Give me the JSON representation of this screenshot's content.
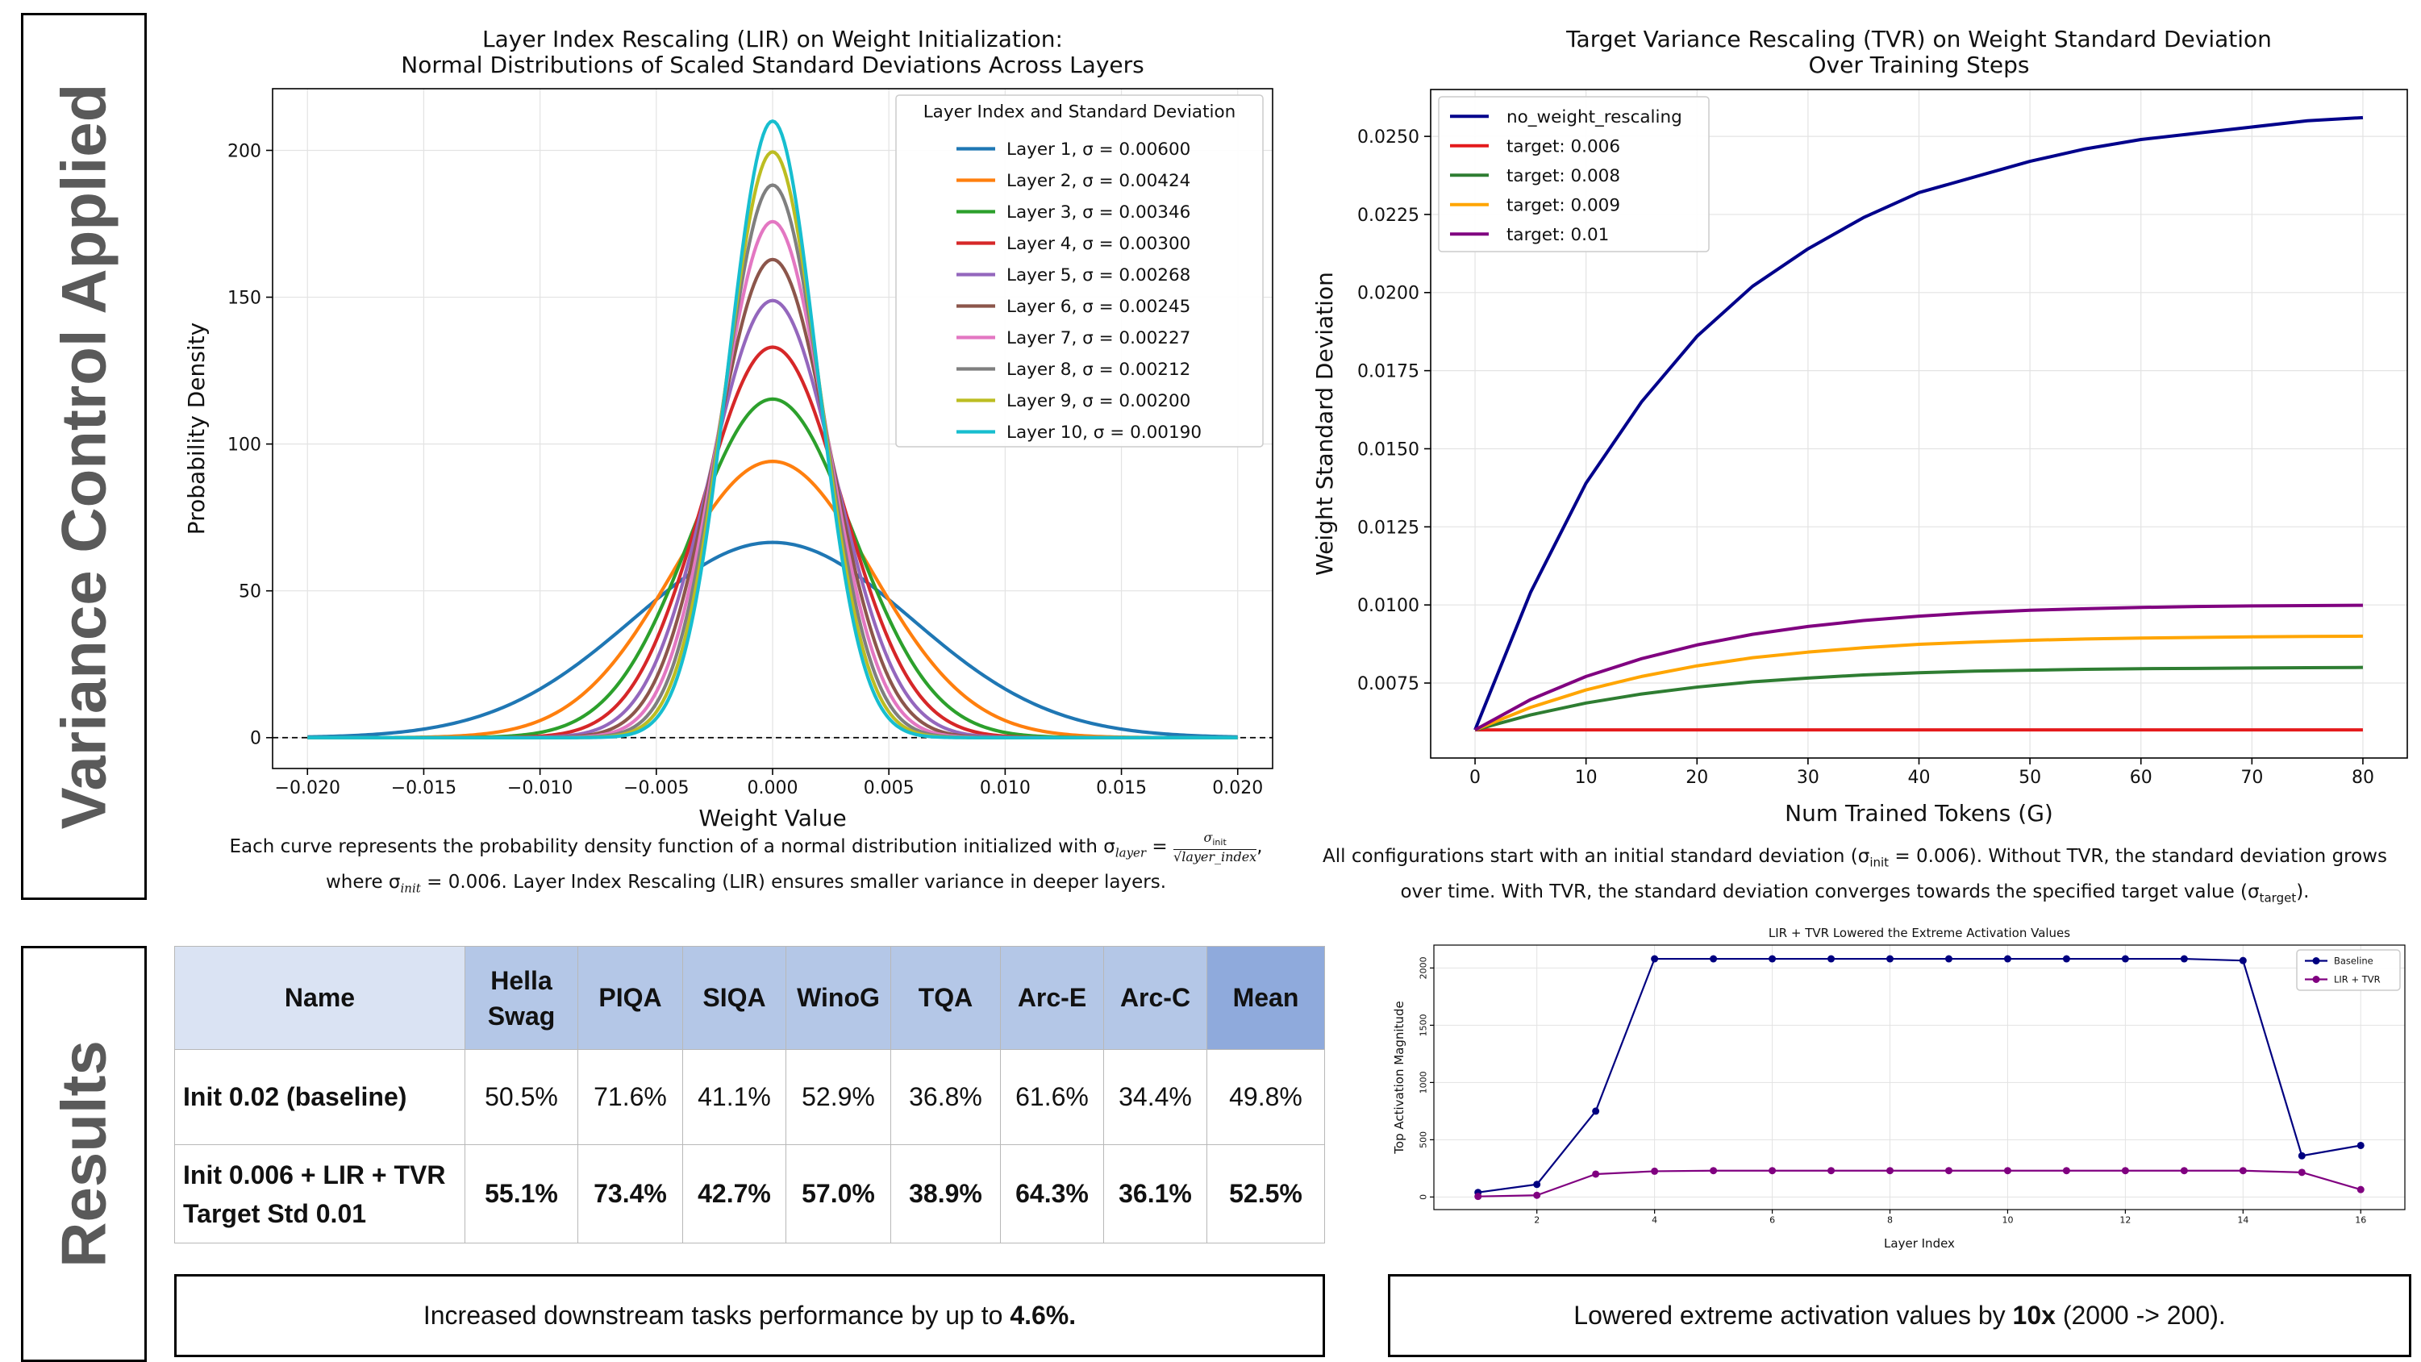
{
  "side_labels": {
    "top": "Variance Control Applied",
    "bottom": "Results"
  },
  "chart_data": [
    {
      "id": "lir",
      "type": "line",
      "title_lines": [
        "Layer Index Rescaling (LIR) on Weight Initialization:",
        "Normal Distributions of Scaled Standard Deviations Across Layers"
      ],
      "xlabel": "Weight Value",
      "ylabel": "Probability Density",
      "xlim": [
        -0.0215,
        0.0215
      ],
      "ylim": [
        -10.5,
        221
      ],
      "xticks": [
        -0.02,
        -0.015,
        -0.01,
        -0.005,
        0.0,
        0.005,
        0.01,
        0.015,
        0.02
      ],
      "xtick_labels": [
        "−0.020",
        "−0.015",
        "−0.010",
        "−0.005",
        "0.000",
        "0.005",
        "0.010",
        "0.015",
        "0.020"
      ],
      "yticks": [
        0,
        50,
        100,
        150,
        200
      ],
      "ytick_labels": [
        "0",
        "50",
        "100",
        "150",
        "200"
      ],
      "grid": true,
      "baseline_dashed_at": 0,
      "legend_title": "Layer Index and Standard Deviation",
      "legend_position": "upper right",
      "curve_range": [
        -0.02,
        0.02
      ],
      "series": [
        {
          "name": "Layer 1, σ = 0.00600",
          "sigma": 0.006,
          "color": "#1f77b4"
        },
        {
          "name": "Layer 2, σ = 0.00424",
          "sigma": 0.00424,
          "color": "#ff7f0e"
        },
        {
          "name": "Layer 3, σ = 0.00346",
          "sigma": 0.00346,
          "color": "#2ca02c"
        },
        {
          "name": "Layer 4, σ = 0.00300",
          "sigma": 0.003,
          "color": "#d62728"
        },
        {
          "name": "Layer 5, σ = 0.00268",
          "sigma": 0.00268,
          "color": "#9467bd"
        },
        {
          "name": "Layer 6, σ = 0.00245",
          "sigma": 0.00245,
          "color": "#8c564b"
        },
        {
          "name": "Layer 7, σ = 0.00227",
          "sigma": 0.00227,
          "color": "#e377c2"
        },
        {
          "name": "Layer 8, σ = 0.00212",
          "sigma": 0.00212,
          "color": "#7f7f7f"
        },
        {
          "name": "Layer 9, σ = 0.00200",
          "sigma": 0.002,
          "color": "#bcbd22"
        },
        {
          "name": "Layer 10, σ = 0.00190",
          "sigma": 0.0019,
          "color": "#17becf"
        }
      ]
    },
    {
      "id": "tvr",
      "type": "line",
      "title_lines": [
        "Target Variance Rescaling (TVR) on Weight Standard Deviation",
        "Over Training Steps"
      ],
      "xlabel": "Num Trained Tokens (G)",
      "ylabel": "Weight Standard Deviation",
      "xlim": [
        -4,
        84
      ],
      "ylim": [
        0.0051,
        0.0265
      ],
      "xticks": [
        0,
        10,
        20,
        30,
        40,
        50,
        60,
        70,
        80
      ],
      "xtick_labels": [
        "0",
        "10",
        "20",
        "30",
        "40",
        "50",
        "60",
        "70",
        "80"
      ],
      "yticks": [
        0.0075,
        0.01,
        0.0125,
        0.015,
        0.0175,
        0.02,
        0.0225,
        0.025
      ],
      "ytick_labels": [
        "0.0075",
        "0.0100",
        "0.0125",
        "0.0150",
        "0.0175",
        "0.0200",
        "0.0225",
        "0.0250"
      ],
      "grid": true,
      "legend_position": "upper left",
      "x": [
        0,
        5,
        10,
        15,
        20,
        25,
        30,
        35,
        40,
        45,
        50,
        55,
        60,
        65,
        70,
        75,
        80
      ],
      "series": [
        {
          "name": "no_weight_rescaling",
          "color": "#00008b",
          "values": [
            0.006,
            0.0104,
            0.0139,
            0.0165,
            0.0186,
            0.0202,
            0.0214,
            0.0224,
            0.0232,
            0.0237,
            0.0242,
            0.0246,
            0.0249,
            0.0251,
            0.0253,
            0.0255,
            0.0256
          ]
        },
        {
          "name": "target: 0.006",
          "color": "#e41a1c",
          "values": [
            0.006,
            0.006,
            0.006,
            0.006,
            0.006,
            0.006,
            0.006,
            0.006,
            0.006,
            0.006,
            0.006,
            0.006,
            0.006,
            0.006,
            0.006,
            0.006,
            0.006
          ]
        },
        {
          "name": "target: 0.008",
          "color": "#2e7d32",
          "values": [
            0.006,
            0.00648,
            0.00686,
            0.00715,
            0.00737,
            0.00754,
            0.00766,
            0.00776,
            0.00783,
            0.00788,
            0.00791,
            0.00794,
            0.00796,
            0.00797,
            0.00798,
            0.00799,
            0.008
          ]
        },
        {
          "name": "target: 0.009",
          "color": "#ffa500",
          "values": [
            0.006,
            0.00672,
            0.00728,
            0.00771,
            0.00805,
            0.00831,
            0.00849,
            0.00863,
            0.00874,
            0.00881,
            0.00887,
            0.00891,
            0.00894,
            0.00896,
            0.00898,
            0.00899,
            0.009
          ]
        },
        {
          "name": "target: 0.01",
          "color": "#800080",
          "values": [
            0.006,
            0.00697,
            0.00771,
            0.00828,
            0.00872,
            0.00906,
            0.00931,
            0.0095,
            0.00964,
            0.00975,
            0.00983,
            0.00988,
            0.00992,
            0.00995,
            0.00997,
            0.00998,
            0.00999
          ]
        }
      ]
    },
    {
      "id": "activation",
      "type": "line",
      "title": "LIR + TVR Lowered the Extreme Activation Values",
      "xlabel": "Layer Index",
      "ylabel": "Top Activation Magnitude",
      "xlim": [
        0.25,
        16.75
      ],
      "ylim": [
        -110,
        2200
      ],
      "xticks": [
        2,
        4,
        6,
        8,
        10,
        12,
        14,
        16
      ],
      "xtick_labels": [
        "2",
        "4",
        "6",
        "8",
        "10",
        "12",
        "14",
        "16"
      ],
      "yticks": [
        0,
        500,
        1000,
        1500,
        2000
      ],
      "ytick_labels": [
        "0",
        "500",
        "1000",
        "1500",
        "2000"
      ],
      "grid": true,
      "legend_position": "upper right",
      "x": [
        1,
        2,
        3,
        4,
        5,
        6,
        7,
        8,
        9,
        10,
        11,
        12,
        13,
        14,
        15,
        16
      ],
      "series": [
        {
          "name": "Baseline",
          "color": "#000080",
          "values": [
            40,
            110,
            750,
            2080,
            2080,
            2080,
            2080,
            2080,
            2080,
            2080,
            2080,
            2080,
            2080,
            2065,
            360,
            450
          ]
        },
        {
          "name": "LIR + TVR",
          "color": "#800080",
          "values": [
            5,
            15,
            200,
            225,
            230,
            230,
            230,
            230,
            230,
            230,
            230,
            230,
            230,
            230,
            215,
            65
          ]
        }
      ]
    }
  ],
  "captions": {
    "lir_line1_pre": "Each curve represents the probability density function of a normal distribution initialized with σ",
    "lir_layer_sub": "layer",
    "lir_eq": " = ",
    "lir_frac_num": "σ",
    "lir_frac_num_sub": "init",
    "lir_frac_den": "√layer_index",
    "lir_line1_end": ",",
    "lir_line2_pre": "where σ",
    "lir_line2_sub": "init",
    "lir_line2_post": " = 0.006. Layer Index Rescaling (LIR) ensures smaller variance in deeper layers.",
    "tvr_line1_pre": "All configurations start with an initial standard deviation (σ",
    "tvr_line1_sub": "init",
    "tvr_line1_post": " = 0.006). Without TVR, the standard deviation grows",
    "tvr_line2_pre": "over time. With TVR, the standard deviation converges towards the specified target value (σ",
    "tvr_line2_sub": "target",
    "tvr_line2_post": ")."
  },
  "results_table": {
    "header_colors": [
      "#dae3f3",
      "#b4c7e7",
      "#b4c7e7",
      "#b4c7e7",
      "#b4c7e7",
      "#b4c7e7",
      "#b4c7e7",
      "#b4c7e7",
      "#8faadc"
    ],
    "columns": [
      "Name",
      "Hella Swag",
      "PIQA",
      "SIQA",
      "WinoG",
      "TQA",
      "Arc-E",
      "Arc-C",
      "Mean"
    ],
    "rows": [
      {
        "name": "Init 0.02 (baseline)",
        "values": [
          "50.5%",
          "71.6%",
          "41.1%",
          "52.9%",
          "36.8%",
          "61.6%",
          "34.4%",
          "49.8%"
        ]
      },
      {
        "name": "Init 0.006 + LIR + TVR Target Std 0.01",
        "values": [
          "55.1%",
          "73.4%",
          "42.7%",
          "57.0%",
          "38.9%",
          "64.3%",
          "36.1%",
          "52.5%"
        ]
      }
    ]
  },
  "notes": {
    "left_pre": "Increased downstream tasks performance by up to ",
    "left_bold": "4.6%.",
    "right_pre": "Lowered extreme activation values by ",
    "right_bold": "10x",
    "right_post": " (2000 -> 200)."
  }
}
